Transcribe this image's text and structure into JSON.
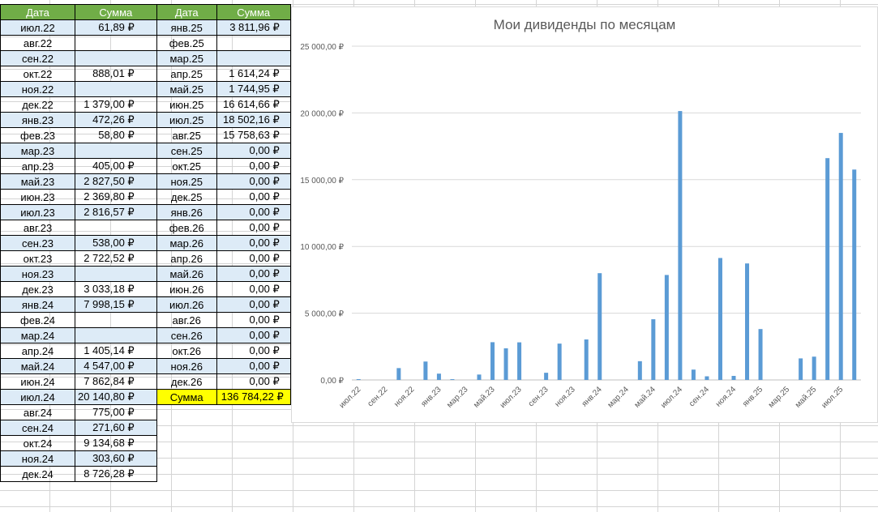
{
  "headers": {
    "date": "Дата",
    "sum": "Сумма"
  },
  "left_rows": [
    {
      "d": "июл.22",
      "v": "61,89 ₽"
    },
    {
      "d": "авг.22",
      "v": ""
    },
    {
      "d": "сен.22",
      "v": ""
    },
    {
      "d": "окт.22",
      "v": "888,01 ₽"
    },
    {
      "d": "ноя.22",
      "v": ""
    },
    {
      "d": "дек.22",
      "v": "1 379,00 ₽"
    },
    {
      "d": "янв.23",
      "v": "472,26 ₽"
    },
    {
      "d": "фев.23",
      "v": "58,80 ₽"
    },
    {
      "d": "мар.23",
      "v": ""
    },
    {
      "d": "апр.23",
      "v": "405,00 ₽"
    },
    {
      "d": "май.23",
      "v": "2 827,50 ₽"
    },
    {
      "d": "июн.23",
      "v": "2 369,80 ₽"
    },
    {
      "d": "июл.23",
      "v": "2 816,57 ₽"
    },
    {
      "d": "авг.23",
      "v": ""
    },
    {
      "d": "сен.23",
      "v": "538,00 ₽"
    },
    {
      "d": "окт.23",
      "v": "2 722,52 ₽"
    },
    {
      "d": "ноя.23",
      "v": ""
    },
    {
      "d": "дек.23",
      "v": "3 033,18 ₽"
    },
    {
      "d": "янв.24",
      "v": "7 998,15 ₽"
    },
    {
      "d": "фев.24",
      "v": ""
    },
    {
      "d": "мар.24",
      "v": ""
    },
    {
      "d": "апр.24",
      "v": "1 405,14 ₽"
    },
    {
      "d": "май.24",
      "v": "4 547,00 ₽"
    },
    {
      "d": "июн.24",
      "v": "7 862,84 ₽"
    },
    {
      "d": "июл.24",
      "v": "20 140,80 ₽"
    },
    {
      "d": "авг.24",
      "v": "775,00 ₽"
    },
    {
      "d": "сен.24",
      "v": "271,60 ₽"
    },
    {
      "d": "окт.24",
      "v": "9 134,68 ₽"
    },
    {
      "d": "ноя.24",
      "v": "303,60 ₽"
    },
    {
      "d": "дек.24",
      "v": "8 726,28 ₽"
    }
  ],
  "right_rows": [
    {
      "d": "янв.25",
      "v": "3 811,96 ₽"
    },
    {
      "d": "фев.25",
      "v": ""
    },
    {
      "d": "мар.25",
      "v": ""
    },
    {
      "d": "апр.25",
      "v": "1 614,24 ₽"
    },
    {
      "d": "май.25",
      "v": "1 744,95 ₽"
    },
    {
      "d": "июн.25",
      "v": "16 614,66 ₽"
    },
    {
      "d": "июл.25",
      "v": "18 502,16 ₽"
    },
    {
      "d": "авг.25",
      "v": "15 758,63 ₽"
    },
    {
      "d": "сен.25",
      "v": "0,00 ₽"
    },
    {
      "d": "окт.25",
      "v": "0,00 ₽"
    },
    {
      "d": "ноя.25",
      "v": "0,00 ₽"
    },
    {
      "d": "дек.25",
      "v": "0,00 ₽"
    },
    {
      "d": "янв.26",
      "v": "0,00 ₽"
    },
    {
      "d": "фев.26",
      "v": "0,00 ₽"
    },
    {
      "d": "мар.26",
      "v": "0,00 ₽"
    },
    {
      "d": "апр.26",
      "v": "0,00 ₽"
    },
    {
      "d": "май.26",
      "v": "0,00 ₽"
    },
    {
      "d": "июн.26",
      "v": "0,00 ₽"
    },
    {
      "d": "июл.26",
      "v": "0,00 ₽"
    },
    {
      "d": "авг.26",
      "v": "0,00 ₽"
    },
    {
      "d": "сен.26",
      "v": "0,00 ₽"
    },
    {
      "d": "окт.26",
      "v": "0,00 ₽"
    },
    {
      "d": "ноя.26",
      "v": "0,00 ₽"
    },
    {
      "d": "дек.26",
      "v": "0,00 ₽"
    }
  ],
  "total": {
    "label": "Сумма",
    "value": "136 784,22 ₽"
  },
  "colors": {
    "header": "#70ad47",
    "shade": "#ddebf7",
    "total": "#ffff00",
    "bar": "#5b9bd5"
  },
  "chart_data": {
    "type": "bar",
    "title": "Мои дивиденды по месяцам",
    "categories": [
      "июл.22",
      "авг.22",
      "сен.22",
      "окт.22",
      "ноя.22",
      "дек.22",
      "янв.23",
      "фев.23",
      "мар.23",
      "апр.23",
      "май.23",
      "июн.23",
      "июл.23",
      "авг.23",
      "сен.23",
      "окт.23",
      "ноя.23",
      "дек.23",
      "янв.24",
      "фев.24",
      "мар.24",
      "апр.24",
      "май.24",
      "июн.24",
      "июл.24",
      "авг.24",
      "сен.24",
      "окт.24",
      "ноя.24",
      "дек.24",
      "янв.25",
      "фев.25",
      "мар.25",
      "апр.25",
      "май.25",
      "июн.25",
      "июл.25",
      "авг.25"
    ],
    "values": [
      61.89,
      0,
      0,
      888.01,
      0,
      1379.0,
      472.26,
      58.8,
      0,
      405.0,
      2827.5,
      2369.8,
      2816.57,
      0,
      538.0,
      2722.52,
      0,
      3033.18,
      7998.15,
      0,
      0,
      1405.14,
      4547.0,
      7862.84,
      20140.8,
      775.0,
      271.6,
      9134.68,
      303.6,
      8726.28,
      3811.96,
      0,
      0,
      1614.24,
      1744.95,
      16614.66,
      18502.16,
      15758.63
    ],
    "x_tick_labels": [
      "июл.22",
      "сен.22",
      "ноя.22",
      "янв.23",
      "мар.23",
      "май.23",
      "июл.23",
      "сен.23",
      "ноя.23",
      "янв.24",
      "мар.24",
      "май.24",
      "июл.24",
      "сен.24",
      "ноя.24",
      "янв.25",
      "мар.25",
      "май.25",
      "июл.25"
    ],
    "y_tick_labels": [
      "0,00 ₽",
      "5 000,00 ₽",
      "10 000,00 ₽",
      "15 000,00 ₽",
      "20 000,00 ₽",
      "25 000,00 ₽"
    ],
    "ylim": [
      0,
      25000
    ],
    "grid": true,
    "legend": "none"
  }
}
